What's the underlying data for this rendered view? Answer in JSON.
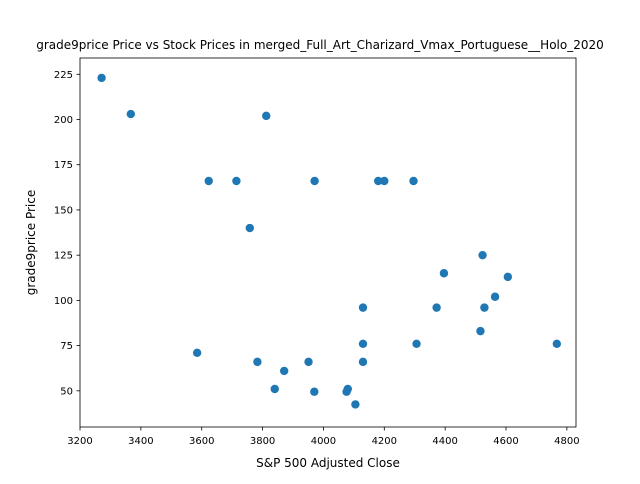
{
  "chart_data": {
    "type": "scatter",
    "title": "grade9price Price vs Stock Prices in merged_Full_Art_Charizard_Vmax_Portuguese__Holo_2020",
    "xlabel": "S&P 500 Adjusted Close",
    "ylabel": "grade9price Price",
    "xlim": [
      3200,
      4830
    ],
    "ylim": [
      30,
      234
    ],
    "xticks": [
      3200,
      3400,
      3600,
      3800,
      4000,
      4200,
      4400,
      4600,
      4800
    ],
    "yticks": [
      50,
      75,
      100,
      125,
      150,
      175,
      200,
      225
    ],
    "grid": false,
    "marker_color": "#1f77b4",
    "points": [
      {
        "x": 3271,
        "y": 223
      },
      {
        "x": 3367,
        "y": 203
      },
      {
        "x": 3812,
        "y": 202
      },
      {
        "x": 3623,
        "y": 166
      },
      {
        "x": 3714,
        "y": 166
      },
      {
        "x": 3971,
        "y": 166
      },
      {
        "x": 4180,
        "y": 166
      },
      {
        "x": 4200,
        "y": 166
      },
      {
        "x": 4296,
        "y": 166
      },
      {
        "x": 3758,
        "y": 140
      },
      {
        "x": 4523,
        "y": 125
      },
      {
        "x": 4396,
        "y": 115
      },
      {
        "x": 4606,
        "y": 113
      },
      {
        "x": 4564,
        "y": 102
      },
      {
        "x": 4130,
        "y": 96
      },
      {
        "x": 4372,
        "y": 96
      },
      {
        "x": 4529,
        "y": 96
      },
      {
        "x": 4516,
        "y": 83
      },
      {
        "x": 4130,
        "y": 76
      },
      {
        "x": 4306,
        "y": 76
      },
      {
        "x": 4767,
        "y": 76
      },
      {
        "x": 3585,
        "y": 71
      },
      {
        "x": 3783,
        "y": 66
      },
      {
        "x": 3951,
        "y": 66
      },
      {
        "x": 4130,
        "y": 66
      },
      {
        "x": 3871,
        "y": 61
      },
      {
        "x": 3840,
        "y": 51
      },
      {
        "x": 4080,
        "y": 51
      },
      {
        "x": 3970,
        "y": 49.5
      },
      {
        "x": 4076,
        "y": 49.5
      },
      {
        "x": 4105,
        "y": 42.5
      }
    ]
  }
}
